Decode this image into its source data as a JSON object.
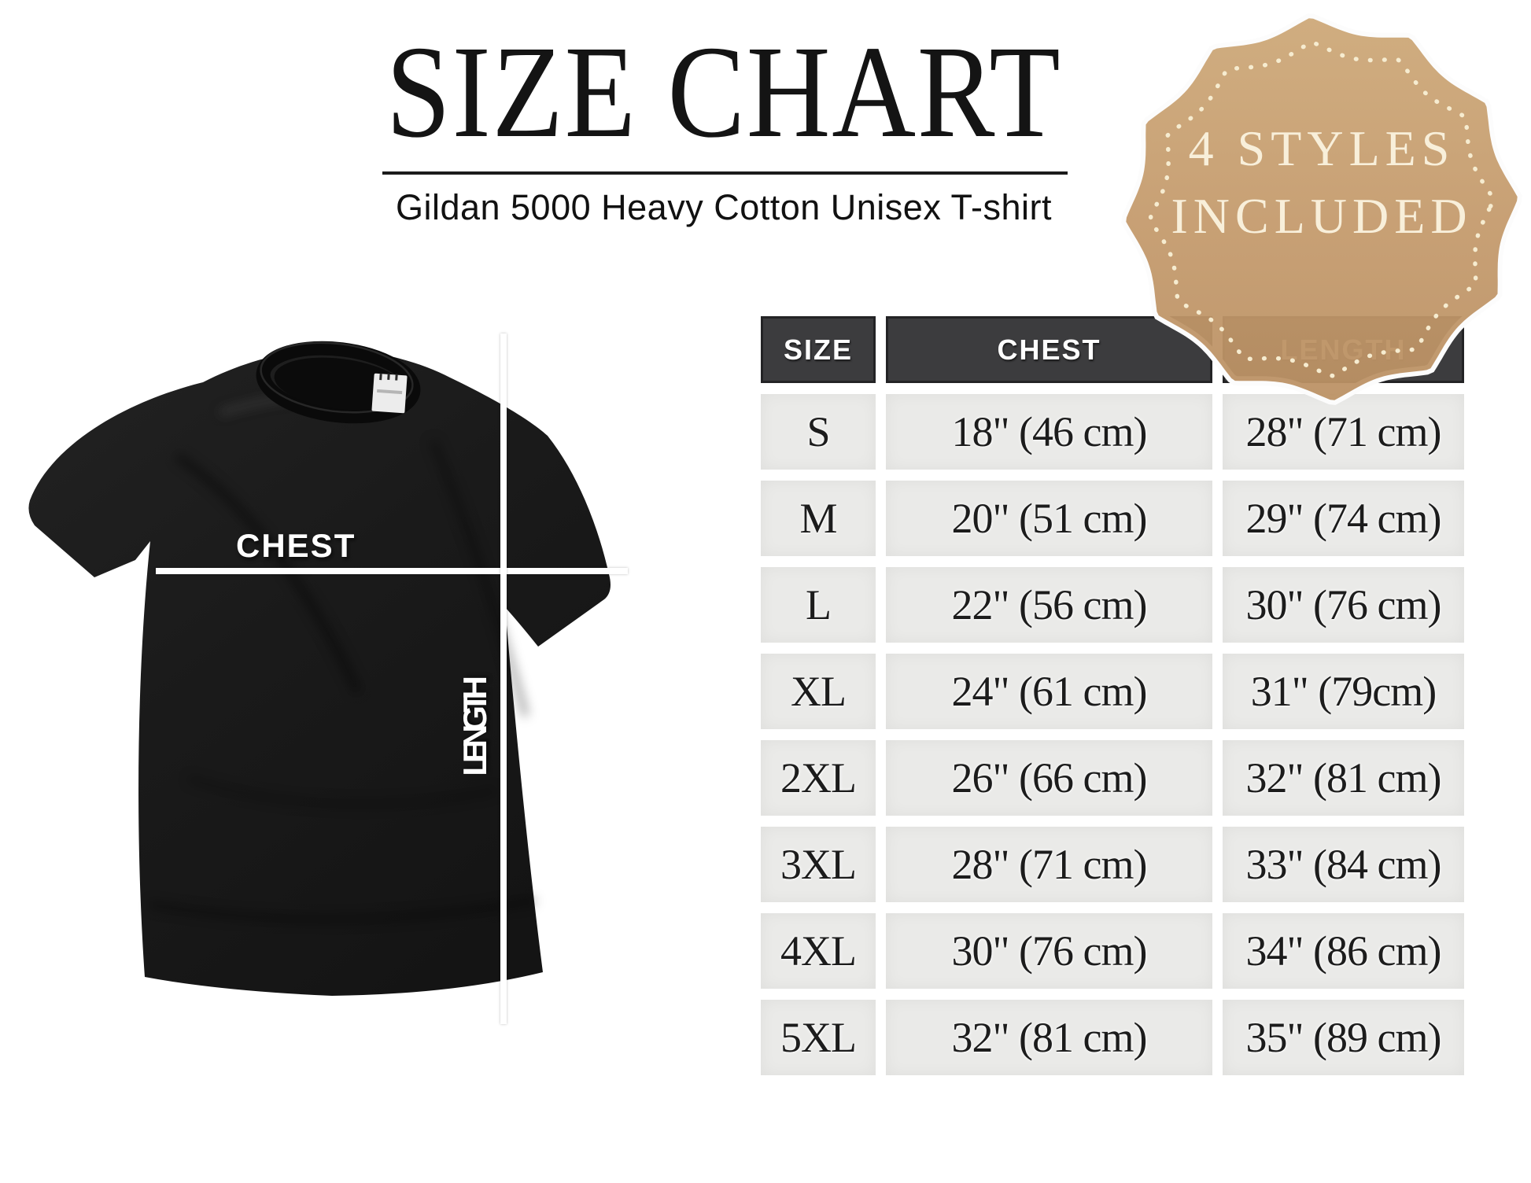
{
  "page": {
    "background": "#ffffff"
  },
  "header": {
    "title": "SIZE CHART",
    "subtitle": "Gildan 5000 Heavy Cotton Unisex T-shirt"
  },
  "badge": {
    "line1": "4 STYLES",
    "line2": "INCLUDED",
    "fill_color": "#c49a6c",
    "text_color": "#f8efda",
    "dot_color": "#f6ecd0"
  },
  "diagram": {
    "chest_label": "CHEST",
    "length_label": "LENGTH",
    "shirt_color": "#1a1a1a",
    "line_color": "#ffffff"
  },
  "size_table": {
    "headers": {
      "size": "SIZE",
      "chest": "CHEST",
      "length": "LENGTH"
    },
    "header_bg": "#3c3c3e",
    "cell_bg": "#eaeae8",
    "rows": [
      {
        "size": "S",
        "chest": "18\" (46 cm)",
        "length": "28\" (71 cm)"
      },
      {
        "size": "M",
        "chest": "20\" (51 cm)",
        "length": "29\" (74 cm)"
      },
      {
        "size": "L",
        "chest": "22\" (56 cm)",
        "length": "30\" (76 cm)"
      },
      {
        "size": "XL",
        "chest": "24\" (61 cm)",
        "length": "31\" (79cm)"
      },
      {
        "size": "2XL",
        "chest": "26\" (66 cm)",
        "length": "32\" (81 cm)"
      },
      {
        "size": "3XL",
        "chest": "28\" (71 cm)",
        "length": "33\" (84 cm)"
      },
      {
        "size": "4XL",
        "chest": "30\" (76 cm)",
        "length": "34\" (86 cm)"
      },
      {
        "size": "5XL",
        "chest": "32\" (81 cm)",
        "length": "35\" (89 cm)"
      }
    ]
  },
  "chart_data": {
    "type": "table",
    "title": "SIZE CHART",
    "subtitle": "Gildan 5000 Heavy Cotton Unisex T-shirt",
    "badge_note": "4 STYLES INCLUDED",
    "columns": [
      "SIZE",
      "CHEST",
      "LENGTH"
    ],
    "rows": [
      [
        "S",
        "18\" (46 cm)",
        "28\" (71 cm)"
      ],
      [
        "M",
        "20\" (51 cm)",
        "29\" (74 cm)"
      ],
      [
        "L",
        "22\" (56 cm)",
        "30\" (76 cm)"
      ],
      [
        "XL",
        "24\" (61 cm)",
        "31\" (79cm)"
      ],
      [
        "2XL",
        "26\" (66 cm)",
        "32\" (81 cm)"
      ],
      [
        "3XL",
        "28\" (71 cm)",
        "33\" (84 cm)"
      ],
      [
        "4XL",
        "30\" (76 cm)",
        "34\" (86 cm)"
      ],
      [
        "5XL",
        "32\" (81 cm)",
        "35\" (89 cm)"
      ]
    ],
    "chest_inches": [
      18,
      20,
      22,
      24,
      26,
      28,
      30,
      32
    ],
    "chest_cm": [
      46,
      51,
      56,
      61,
      66,
      71,
      76,
      81
    ],
    "length_inches": [
      28,
      29,
      30,
      31,
      32,
      33,
      34,
      35
    ],
    "length_cm": [
      71,
      74,
      76,
      79,
      81,
      84,
      86,
      89
    ]
  }
}
